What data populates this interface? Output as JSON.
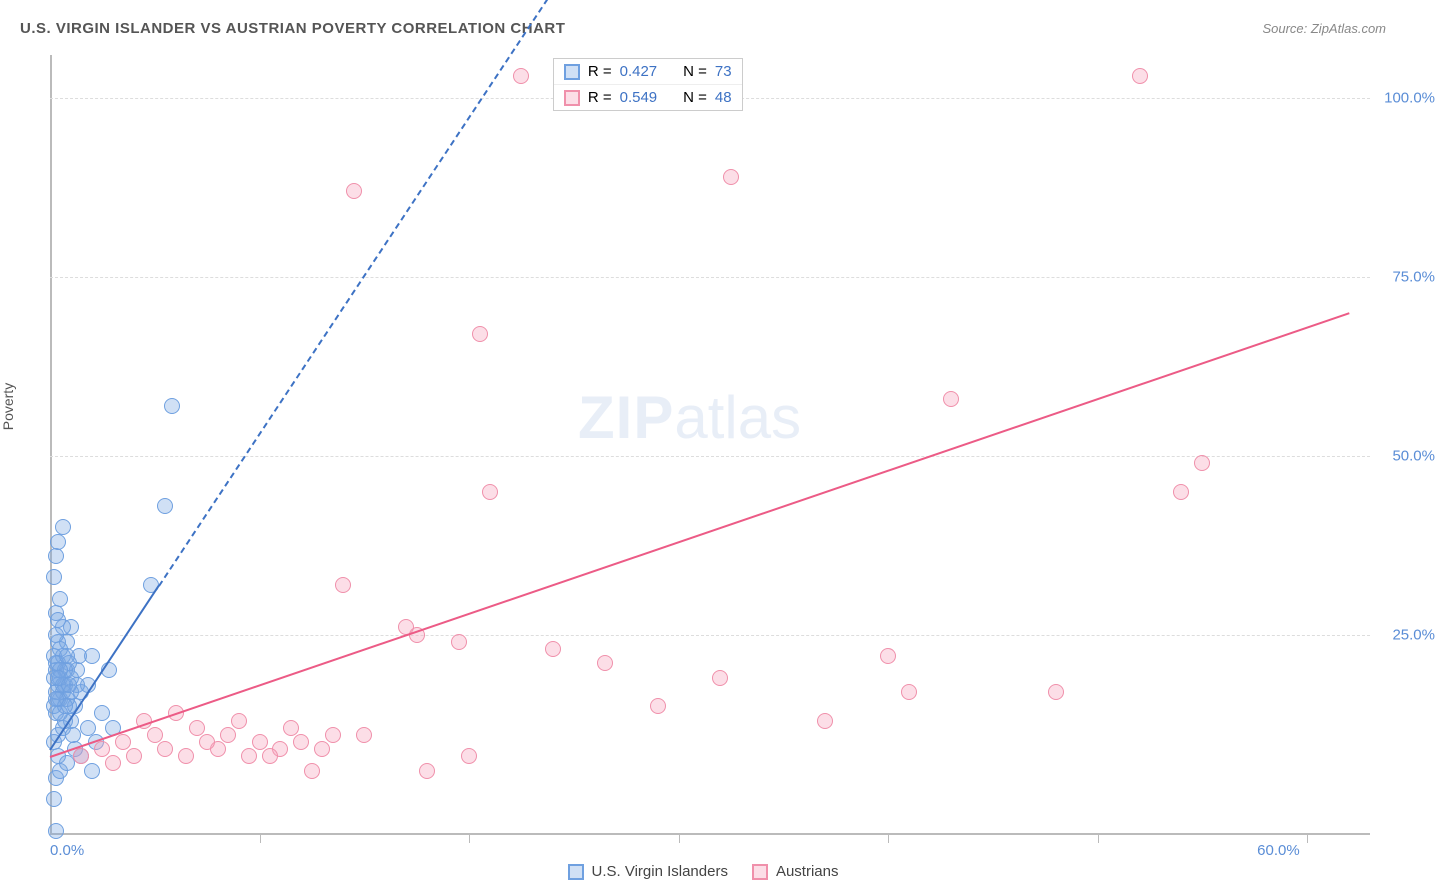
{
  "header": {
    "title": "U.S. VIRGIN ISLANDER VS AUSTRIAN POVERTY CORRELATION CHART",
    "source": "Source: ZipAtlas.com"
  },
  "axes": {
    "ylabel": "Poverty",
    "xlim": [
      0,
      63
    ],
    "ylim": [
      -3,
      106
    ],
    "yticks": [
      {
        "value": 25,
        "label": "25.0%"
      },
      {
        "value": 50,
        "label": "50.0%"
      },
      {
        "value": 75,
        "label": "75.0%"
      },
      {
        "value": 100,
        "label": "100.0%"
      }
    ],
    "xticks_minor": [
      10,
      20,
      30,
      40,
      50,
      60
    ],
    "xlabels": [
      {
        "value": 0,
        "label": "0.0%",
        "align": "left"
      },
      {
        "value": 60,
        "label": "60.0%",
        "align": "right"
      }
    ],
    "grid_color": "#dddddd",
    "axis_color": "#bbbbbb"
  },
  "watermark": {
    "bold": "ZIP",
    "rest": "atlas",
    "color": "rgba(100,140,200,0.15)"
  },
  "series": [
    {
      "name": "U.S. Virgin Islanders",
      "color_stroke": "#6fa0e0",
      "color_fill": "rgba(120,165,225,0.35)",
      "marker_radius": 8,
      "R": "0.427",
      "N": "73",
      "trend": {
        "x1": 0,
        "y1": 9,
        "x2": 5.2,
        "y2": 32,
        "dashed_extend_to_x": 24,
        "color": "#3d72c4"
      },
      "points": [
        [
          0.3,
          -2.5
        ],
        [
          0.2,
          2
        ],
        [
          0.3,
          5
        ],
        [
          0.5,
          6
        ],
        [
          0.4,
          8
        ],
        [
          0.8,
          7
        ],
        [
          0.2,
          10
        ],
        [
          0.4,
          11
        ],
        [
          0.6,
          12
        ],
        [
          0.3,
          14
        ],
        [
          1.0,
          13
        ],
        [
          0.5,
          16
        ],
        [
          1.2,
          15
        ],
        [
          0.4,
          18
        ],
        [
          0.7,
          18
        ],
        [
          1.5,
          17
        ],
        [
          0.3,
          20
        ],
        [
          0.8,
          20
        ],
        [
          1.3,
          20
        ],
        [
          0.2,
          22
        ],
        [
          0.6,
          22
        ],
        [
          2.0,
          22
        ],
        [
          0.4,
          24
        ],
        [
          1.0,
          26
        ],
        [
          0.3,
          28
        ],
        [
          0.5,
          30
        ],
        [
          0.2,
          33
        ],
        [
          2.2,
          10
        ],
        [
          1.8,
          12
        ],
        [
          2.5,
          14
        ],
        [
          1.5,
          8
        ],
        [
          2.0,
          6
        ],
        [
          3.0,
          12
        ],
        [
          2.8,
          20
        ],
        [
          0.3,
          36
        ],
        [
          0.4,
          38
        ],
        [
          0.6,
          40
        ],
        [
          5.5,
          43
        ],
        [
          5.8,
          57
        ],
        [
          4.8,
          32
        ],
        [
          1.2,
          9
        ],
        [
          1.8,
          18
        ],
        [
          0.8,
          24
        ],
        [
          0.5,
          19
        ],
        [
          0.9,
          15
        ],
        [
          1.4,
          22
        ],
        [
          0.6,
          26
        ],
        [
          0.3,
          17
        ],
        [
          0.7,
          13
        ],
        [
          1.1,
          11
        ],
        [
          0.4,
          21
        ],
        [
          0.2,
          15
        ],
        [
          0.5,
          23
        ],
        [
          0.8,
          16
        ],
        [
          1.0,
          19
        ],
        [
          0.3,
          25
        ],
        [
          0.6,
          17
        ],
        [
          0.4,
          27
        ],
        [
          0.9,
          21
        ],
        [
          1.3,
          18
        ],
        [
          0.5,
          14
        ],
        [
          0.7,
          20
        ],
        [
          0.2,
          19
        ],
        [
          0.4,
          16
        ],
        [
          0.6,
          18
        ],
        [
          0.3,
          21
        ],
        [
          0.8,
          22
        ],
        [
          1.0,
          17
        ],
        [
          0.5,
          20
        ],
        [
          0.7,
          15
        ],
        [
          0.4,
          19
        ],
        [
          0.9,
          18
        ],
        [
          0.3,
          16
        ]
      ]
    },
    {
      "name": "Austrians",
      "color_stroke": "#f090ab",
      "color_fill": "rgba(245,160,185,0.35)",
      "marker_radius": 8,
      "R": "0.549",
      "N": "48",
      "trend": {
        "x1": 0,
        "y1": 8,
        "x2": 62,
        "y2": 70,
        "color": "#ec5b86"
      },
      "points": [
        [
          1.5,
          8
        ],
        [
          2.5,
          9
        ],
        [
          3.5,
          10
        ],
        [
          4.0,
          8
        ],
        [
          5.0,
          11
        ],
        [
          5.5,
          9
        ],
        [
          6.5,
          8
        ],
        [
          7.0,
          12
        ],
        [
          8.0,
          9
        ],
        [
          8.5,
          11
        ],
        [
          9.5,
          8
        ],
        [
          10.0,
          10
        ],
        [
          11.0,
          9
        ],
        [
          11.5,
          12
        ],
        [
          12.5,
          6
        ],
        [
          13.5,
          11
        ],
        [
          14.0,
          32
        ],
        [
          17.0,
          26
        ],
        [
          17.5,
          25
        ],
        [
          18.0,
          6
        ],
        [
          19.5,
          24
        ],
        [
          20.0,
          8
        ],
        [
          20.5,
          67
        ],
        [
          21.0,
          45
        ],
        [
          22.5,
          103
        ],
        [
          24.0,
          23
        ],
        [
          26.5,
          21
        ],
        [
          29.0,
          15
        ],
        [
          32.0,
          19
        ],
        [
          32.5,
          89
        ],
        [
          37.0,
          13
        ],
        [
          40.0,
          22
        ],
        [
          41.0,
          17
        ],
        [
          43.0,
          58
        ],
        [
          48.0,
          17
        ],
        [
          52.0,
          103
        ],
        [
          54.0,
          45
        ],
        [
          55.0,
          49
        ],
        [
          14.5,
          87
        ],
        [
          6.0,
          14
        ],
        [
          4.5,
          13
        ],
        [
          3.0,
          7
        ],
        [
          7.5,
          10
        ],
        [
          9.0,
          13
        ],
        [
          10.5,
          8
        ],
        [
          12.0,
          10
        ],
        [
          13.0,
          9
        ],
        [
          15.0,
          11
        ]
      ]
    }
  ],
  "stat_box": {
    "label_R": "R =",
    "label_N": "N =",
    "value_color": "#3d72c4"
  },
  "bottom_legend": [
    {
      "swatch_fill": "rgba(120,165,225,0.35)",
      "swatch_stroke": "#6fa0e0",
      "label": "U.S. Virgin Islanders"
    },
    {
      "swatch_fill": "rgba(245,160,185,0.35)",
      "swatch_stroke": "#f090ab",
      "label": "Austrians"
    }
  ]
}
